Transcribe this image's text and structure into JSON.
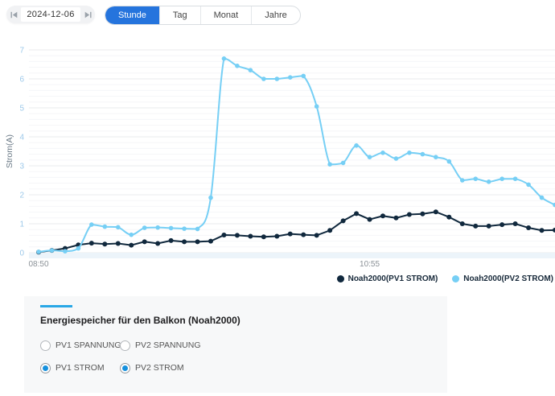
{
  "header": {
    "date_picker": {
      "value": "2024-12-06",
      "prev_icon": "skip-previous-icon",
      "next_icon": "skip-next-icon"
    },
    "tabs": [
      {
        "label": "Stunde",
        "active": true
      },
      {
        "label": "Tag",
        "active": false
      },
      {
        "label": "Monat",
        "active": false
      },
      {
        "label": "Jahre",
        "active": false
      }
    ],
    "active_tab_color": "#2574dd"
  },
  "chart_data": {
    "type": "line",
    "title": "",
    "xlabel": "",
    "ylabel": "Strom(A)",
    "ylim": [
      0,
      7
    ],
    "y_ticks": [
      0,
      1,
      2,
      3,
      4,
      5,
      6,
      7
    ],
    "grid": true,
    "minor_grid_step": 0.2,
    "legend_position": "bottom-right",
    "x": [
      "08:50",
      "08:55",
      "09:00",
      "09:05",
      "09:10",
      "09:15",
      "09:20",
      "09:25",
      "09:30",
      "09:35",
      "09:40",
      "09:45",
      "09:50",
      "09:55",
      "10:00",
      "10:05",
      "10:10",
      "10:15",
      "10:20",
      "10:25",
      "10:30",
      "10:35",
      "10:40",
      "10:45",
      "10:50",
      "10:55",
      "11:00",
      "11:05",
      "11:10",
      "11:15",
      "11:20",
      "11:25",
      "11:30",
      "11:35",
      "11:40",
      "11:45",
      "11:50",
      "11:55",
      "12:00",
      "12:05"
    ],
    "x_tick_labels": [
      {
        "index": 0,
        "label": "08:50"
      },
      {
        "index": 25,
        "label": "10:55"
      }
    ],
    "series": [
      {
        "name": "Noah2000(PV1 STROM)",
        "color": "#10283d",
        "smooth": false,
        "values": [
          0.02,
          0.08,
          0.15,
          0.27,
          0.33,
          0.3,
          0.32,
          0.26,
          0.38,
          0.32,
          0.42,
          0.38,
          0.38,
          0.4,
          0.61,
          0.6,
          0.57,
          0.55,
          0.57,
          0.65,
          0.62,
          0.6,
          0.77,
          1.1,
          1.35,
          1.15,
          1.27,
          1.2,
          1.32,
          1.34,
          1.41,
          1.23,
          1.0,
          0.92,
          0.92,
          0.97,
          1.0,
          0.86,
          0.77,
          0.78
        ]
      },
      {
        "name": "Noah2000(PV2 STROM)",
        "color": "#76cff5",
        "smooth": true,
        "values": [
          0.03,
          0.08,
          0.05,
          0.15,
          0.97,
          0.9,
          0.88,
          0.62,
          0.86,
          0.87,
          0.85,
          0.83,
          0.82,
          1.9,
          6.7,
          6.45,
          6.3,
          6.0,
          6.0,
          6.05,
          6.1,
          5.05,
          3.05,
          3.1,
          3.7,
          3.3,
          3.45,
          3.25,
          3.45,
          3.4,
          3.3,
          3.15,
          2.5,
          2.55,
          2.45,
          2.55,
          2.55,
          2.35,
          1.9,
          1.65
        ]
      }
    ],
    "axis_colors": {
      "y_tick_label": "#9dc9ea",
      "x_tick_label": "#8b9197",
      "major_grid": "#e9ebee",
      "minor_grid": "#f5f6f8",
      "bottom_strip": "#ecf4fa"
    }
  },
  "panel": {
    "title": "Energiespeicher für den Balkon (Noah2000)",
    "accent_color": "#29a7e6",
    "options": [
      {
        "label": "PV1 SPANNUNG",
        "checked": false
      },
      {
        "label": "PV2 SPANNUNG",
        "checked": false
      },
      {
        "label": "PV1 STROM",
        "checked": true
      },
      {
        "label": "PV2 STROM",
        "checked": true
      }
    ],
    "checked_color": "#1690dd"
  }
}
